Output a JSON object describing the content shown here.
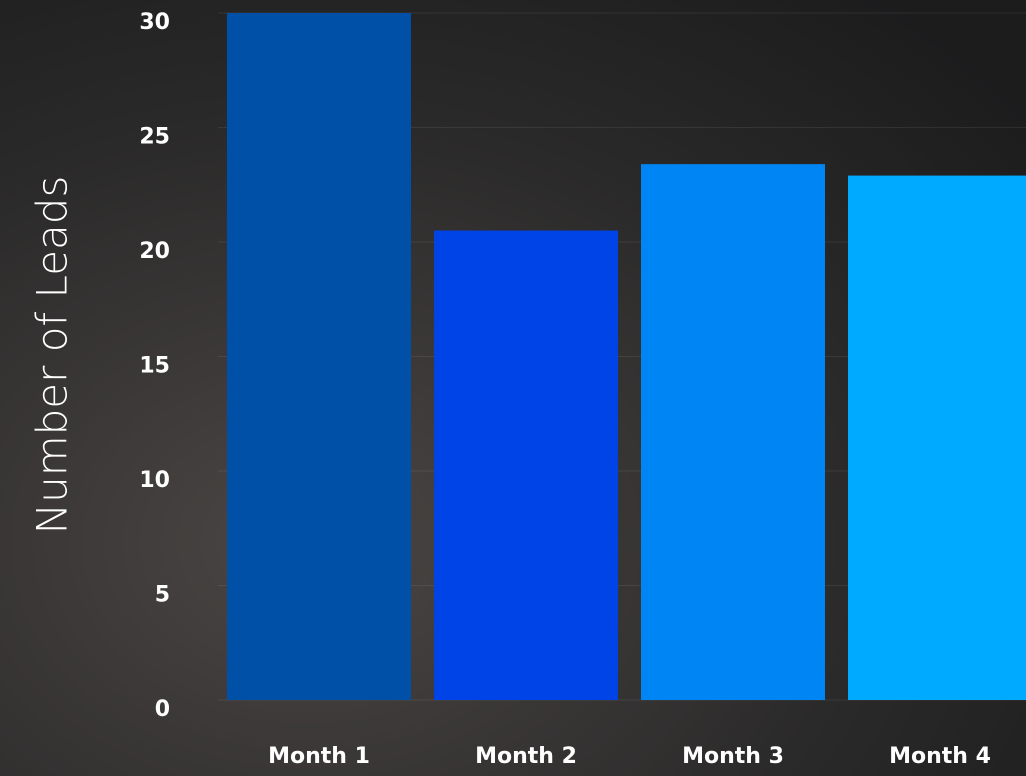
{
  "chart_data": {
    "type": "bar",
    "y_label": "Number of Leads",
    "categories": [
      "Month 1",
      "Month 2",
      "Month 3",
      "Month 4"
    ],
    "values": [
      30,
      20.5,
      23.4,
      22.9
    ],
    "colors": [
      "#0050a8",
      "#0044e8",
      "#0085f5",
      "#00aaff"
    ],
    "ylim": [
      0,
      30
    ],
    "yticks": [
      0,
      5,
      10,
      15,
      20,
      25,
      30
    ],
    "grid": true
  }
}
